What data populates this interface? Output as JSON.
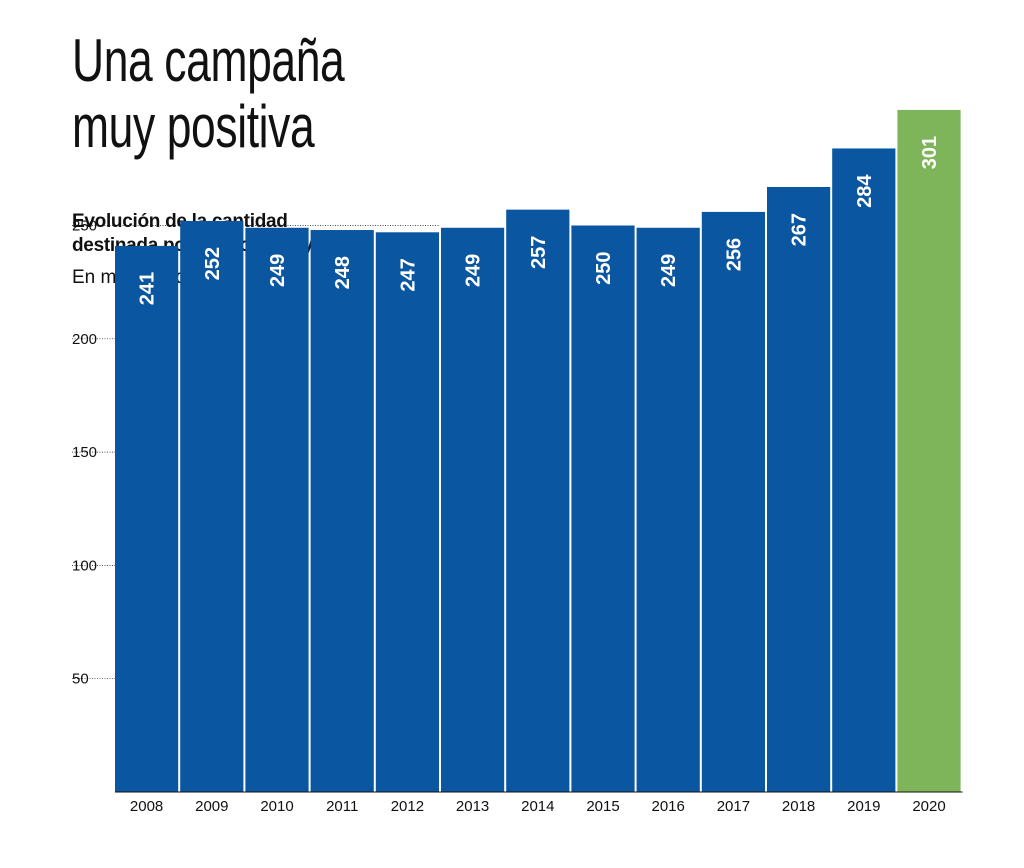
{
  "title": "Una campaña\nmuy positiva",
  "subtitle": "Evolución de la cantidad\ndestinada por los contribuyentes",
  "unit_label": "En millones de €",
  "colors": {
    "bar": "#0a56a0",
    "highlight": "#7fb55a",
    "text": "#111111"
  },
  "chart_data": {
    "type": "bar",
    "title": "Una campaña muy positiva",
    "subtitle": "Evolución de la cantidad destinada por los contribuyentes",
    "ylabel": "En millones de €",
    "categories": [
      "2008",
      "2009",
      "2010",
      "2011",
      "2012",
      "2013",
      "2014",
      "2015",
      "2016",
      "2017",
      "2018",
      "2019",
      "2020"
    ],
    "values": [
      241,
      252,
      249,
      248,
      247,
      249,
      257,
      250,
      249,
      256,
      267,
      284,
      301
    ],
    "highlight_category": "2020",
    "yticks": [
      50,
      100,
      150,
      200,
      250
    ],
    "grid": false
  }
}
